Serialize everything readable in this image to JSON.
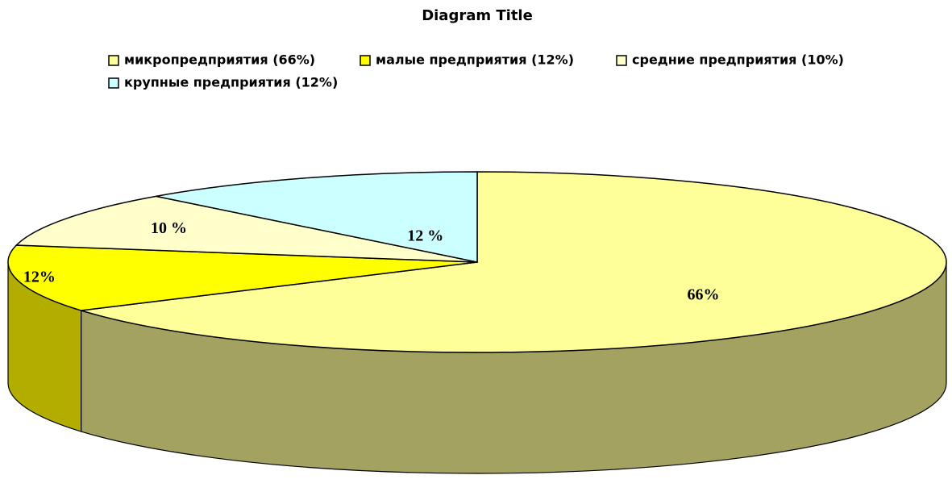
{
  "chart_data": {
    "type": "pie",
    "title": "Diagram Title",
    "categories": [
      "микропредприятия (66%)",
      "малые предприятия (12%)",
      "средние предприятия (10%)",
      "крупные предприятия (12%)"
    ],
    "values": [
      66,
      12,
      10,
      12
    ],
    "value_labels": [
      "66%",
      "12%",
      "10 %",
      "12 %"
    ],
    "colors": [
      "#ffff99",
      "#ffff00",
      "#ffffcc",
      "#ccffff"
    ],
    "side_colors": [
      "#a3a260",
      "#b3ad00",
      "#b3b38f",
      "#8fb3b3"
    ]
  }
}
